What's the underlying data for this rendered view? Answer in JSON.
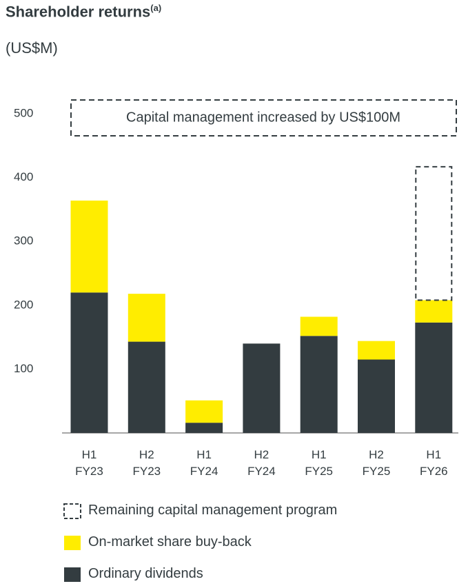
{
  "chart_data": {
    "type": "stacked_bar",
    "title": "Shareholder returns",
    "title_note": "(a)",
    "subtitle": "(US$M)",
    "annotation": "Capital management increased by US$100M",
    "categories": [
      "H1 FY23",
      "H2 FY23",
      "H1 FY24",
      "H2 FY24",
      "H1 FY25",
      "H2 FY25",
      "H1 FY26"
    ],
    "series": [
      {
        "name": "Ordinary dividends",
        "color": "#333c40",
        "style": "solid",
        "values": [
          220,
          143,
          16,
          140,
          152,
          115,
          173
        ]
      },
      {
        "name": "On-market share buy-back",
        "color": "#ffed00",
        "style": "solid",
        "values": [
          144,
          75,
          35,
          0,
          30,
          29,
          35
        ]
      },
      {
        "name": "Remaining capital management program",
        "color": "#333c40",
        "style": "dashed",
        "values": [
          null,
          null,
          null,
          null,
          null,
          null,
          209
        ]
      }
    ],
    "ylim": [
      0,
      500
    ],
    "yticks": [
      100,
      200,
      300,
      400,
      500
    ],
    "grid": false
  }
}
